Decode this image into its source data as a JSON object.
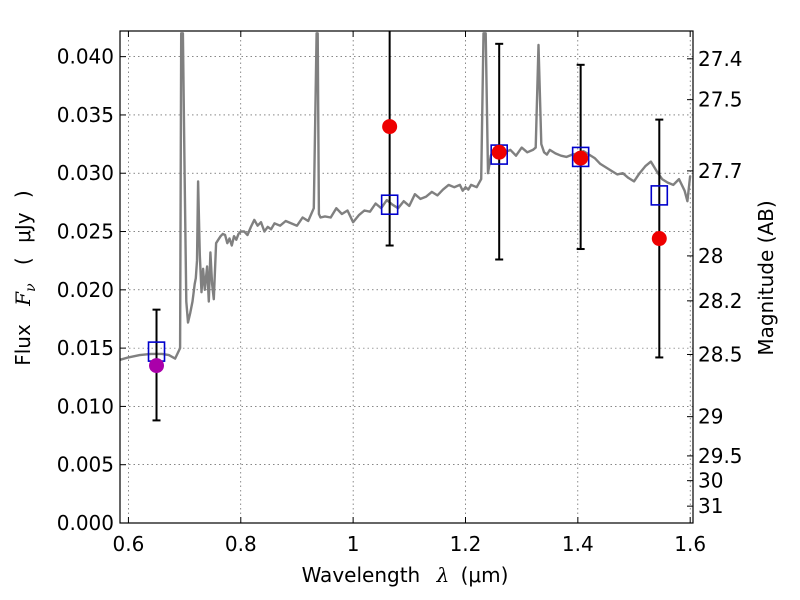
{
  "chart_data": {
    "type": "scatter",
    "xlabel": "Wavelength  λ (μm)",
    "ylabel": "Flux  F_ν  ( μJy )",
    "ylabel_parts": {
      "flux": "Flux",
      "sym": "F",
      "sub": "ν",
      "paren_open": "(",
      "unit": "μJy",
      "paren_close": ")"
    },
    "xlabel_parts": {
      "text": "Wavelength",
      "sym": "λ",
      "unit": "(μm)"
    },
    "y2label": "Magnitude (AB)",
    "xlim": [
      0.585,
      1.605
    ],
    "ylim": [
      0.0,
      0.0422
    ],
    "grid": true,
    "x_ticks": [
      0.6,
      0.8,
      1.0,
      1.2,
      1.4,
      1.6
    ],
    "x_tick_labels": [
      "0.6",
      "0.8",
      "1",
      "1.2",
      "1.4",
      "1.6"
    ],
    "y_ticks": [
      0.0,
      0.005,
      0.01,
      0.015,
      0.02,
      0.025,
      0.03,
      0.035,
      0.04
    ],
    "y_tick_labels": [
      "0.000",
      "0.005",
      "0.010",
      "0.015",
      "0.020",
      "0.025",
      "0.030",
      "0.035",
      "0.040"
    ],
    "mag_ticks": [
      27.4,
      27.5,
      27.7,
      28,
      28.2,
      28.5,
      29,
      29.5,
      30,
      31
    ],
    "mag_tick_labels": [
      "27.4",
      "27.5",
      "27.7",
      "28",
      "28.2",
      "28.5",
      "29",
      "29.5",
      "30",
      "31"
    ],
    "colors": {
      "spectrum": "#808080",
      "model": "#0000cc",
      "observed": "#ee0000",
      "observed_optical": "#aa00aa",
      "errorbar": "#000000"
    },
    "spectrum": {
      "x": [
        0.585,
        0.6,
        0.62,
        0.64,
        0.66,
        0.672,
        0.683,
        0.692,
        0.694,
        0.697,
        0.7,
        0.703,
        0.706,
        0.71,
        0.714,
        0.718,
        0.72,
        0.722,
        0.724,
        0.727,
        0.73,
        0.733,
        0.736,
        0.74,
        0.743,
        0.746,
        0.749,
        0.752,
        0.756,
        0.76,
        0.764,
        0.768,
        0.772,
        0.776,
        0.78,
        0.784,
        0.788,
        0.792,
        0.796,
        0.8,
        0.806,
        0.812,
        0.818,
        0.824,
        0.83,
        0.836,
        0.842,
        0.848,
        0.854,
        0.86,
        0.87,
        0.88,
        0.89,
        0.9,
        0.91,
        0.92,
        0.93,
        0.935,
        0.937,
        0.939,
        0.942,
        0.95,
        0.96,
        0.97,
        0.98,
        0.99,
        1.0,
        1.01,
        1.02,
        1.03,
        1.04,
        1.05,
        1.06,
        1.07,
        1.08,
        1.09,
        1.1,
        1.11,
        1.12,
        1.13,
        1.14,
        1.15,
        1.16,
        1.17,
        1.18,
        1.19,
        1.195,
        1.2,
        1.205,
        1.21,
        1.22,
        1.228,
        1.232,
        1.236,
        1.24,
        1.245,
        1.25,
        1.26,
        1.27,
        1.28,
        1.29,
        1.3,
        1.31,
        1.32,
        1.325,
        1.33,
        1.335,
        1.34,
        1.345,
        1.35,
        1.36,
        1.37,
        1.38,
        1.39,
        1.4,
        1.41,
        1.42,
        1.43,
        1.44,
        1.45,
        1.46,
        1.47,
        1.48,
        1.49,
        1.5,
        1.51,
        1.52,
        1.53,
        1.54,
        1.55,
        1.56,
        1.57,
        1.58,
        1.59,
        1.595,
        1.6
      ],
      "y": [
        0.014,
        0.0142,
        0.0144,
        0.0145,
        0.0145,
        0.0144,
        0.0141,
        0.015,
        0.042,
        0.042,
        0.03,
        0.019,
        0.0172,
        0.018,
        0.019,
        0.0205,
        0.021,
        0.0225,
        0.0293,
        0.023,
        0.0198,
        0.0218,
        0.02,
        0.022,
        0.019,
        0.0232,
        0.0205,
        0.0192,
        0.024,
        0.0243,
        0.0246,
        0.0248,
        0.0247,
        0.024,
        0.0244,
        0.0238,
        0.0246,
        0.0243,
        0.0248,
        0.025,
        0.025,
        0.0247,
        0.0254,
        0.026,
        0.0255,
        0.0258,
        0.025,
        0.0254,
        0.0252,
        0.0257,
        0.0255,
        0.0259,
        0.0257,
        0.0255,
        0.0262,
        0.0259,
        0.027,
        0.042,
        0.042,
        0.0265,
        0.0262,
        0.0263,
        0.0262,
        0.027,
        0.0265,
        0.0268,
        0.0258,
        0.0264,
        0.0268,
        0.0267,
        0.0274,
        0.027,
        0.0277,
        0.0273,
        0.027,
        0.0276,
        0.0272,
        0.0282,
        0.0278,
        0.028,
        0.0284,
        0.0281,
        0.0286,
        0.029,
        0.0288,
        0.029,
        0.0285,
        0.0288,
        0.0286,
        0.029,
        0.0288,
        0.0295,
        0.042,
        0.042,
        0.03,
        0.0315,
        0.032,
        0.0322,
        0.0318,
        0.032,
        0.0315,
        0.0322,
        0.0318,
        0.032,
        0.0322,
        0.041,
        0.0325,
        0.0318,
        0.0316,
        0.032,
        0.0317,
        0.0315,
        0.0314,
        0.0316,
        0.0317,
        0.0319,
        0.0316,
        0.0313,
        0.0308,
        0.0305,
        0.0302,
        0.0299,
        0.03,
        0.0296,
        0.0293,
        0.03,
        0.0306,
        0.031,
        0.0302,
        0.0295,
        0.0292,
        0.029,
        0.0295,
        0.0285,
        0.0276,
        0.0298
      ]
    },
    "model_points": {
      "x": [
        0.65,
        1.065,
        1.26,
        1.405,
        1.545
      ],
      "y": [
        0.0147,
        0.0273,
        0.0316,
        0.0314,
        0.0281
      ]
    },
    "observed_points": {
      "x": [
        0.65,
        1.065,
        1.26,
        1.405,
        1.545
      ],
      "y": [
        0.0135,
        0.034,
        0.0318,
        0.0313,
        0.0244
      ],
      "yerr_low": [
        0.0088,
        0.0238,
        0.0226,
        0.0235,
        0.0142
      ],
      "yerr_high": [
        0.0183,
        0.043,
        0.0411,
        0.0393,
        0.0346
      ]
    }
  }
}
